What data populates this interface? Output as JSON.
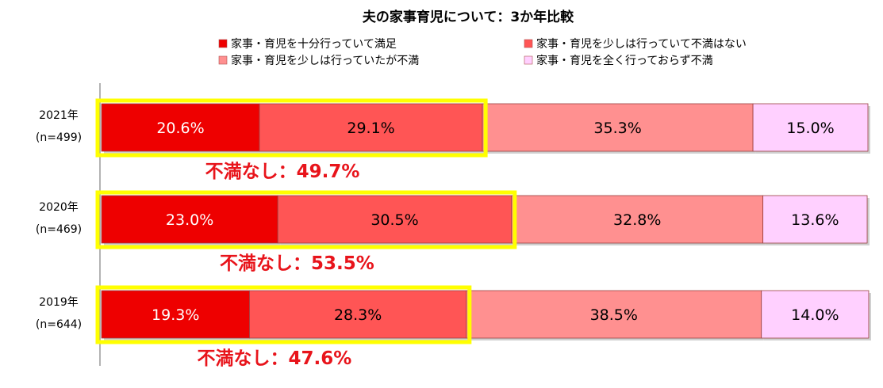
{
  "chart_data": {
    "type": "bar",
    "orientation": "horizontal",
    "stacked": true,
    "title": "夫の家事育児について：3か年比較",
    "xlim": [
      0,
      100
    ],
    "legend_position": "top",
    "categories": [
      {
        "year": "2021年",
        "n": "(n=499)"
      },
      {
        "year": "2020年",
        "n": "(n=469)"
      },
      {
        "year": "2019年",
        "n": "(n=644)"
      }
    ],
    "series": [
      {
        "name": "家事・育児を十分行っていて満足",
        "color": "#ee0000",
        "values": [
          20.6,
          23.0,
          19.3
        ],
        "labels": [
          "20.6%",
          "23.0%",
          "19.3%"
        ],
        "label_color": "#ffffff"
      },
      {
        "name": "家事・育児を少しは行っていて不満はない",
        "color": "#ff5555",
        "values": [
          29.1,
          30.5,
          28.3
        ],
        "labels": [
          "29.1%",
          "30.5%",
          "28.3%"
        ],
        "label_color": "#000000"
      },
      {
        "name": "家事・育児を少しは行っていたが不満",
        "color": "#ff9090",
        "values": [
          35.3,
          32.8,
          38.5
        ],
        "labels": [
          "35.3%",
          "32.8%",
          "38.5%"
        ],
        "label_color": "#000000"
      },
      {
        "name": "家事・育児を全く行っておらず不満",
        "color": "#ffd0ff",
        "values": [
          15.0,
          13.6,
          14.0
        ],
        "labels": [
          "15.0%",
          "13.6%",
          "14.0%"
        ],
        "label_color": "#000000"
      }
    ],
    "annotations": [
      "不満なし：49.7%",
      "不満なし：53.5%",
      "不満なし：47.6%"
    ],
    "highlight_color": "#ffff00",
    "annotation_color": "#e8141b"
  }
}
